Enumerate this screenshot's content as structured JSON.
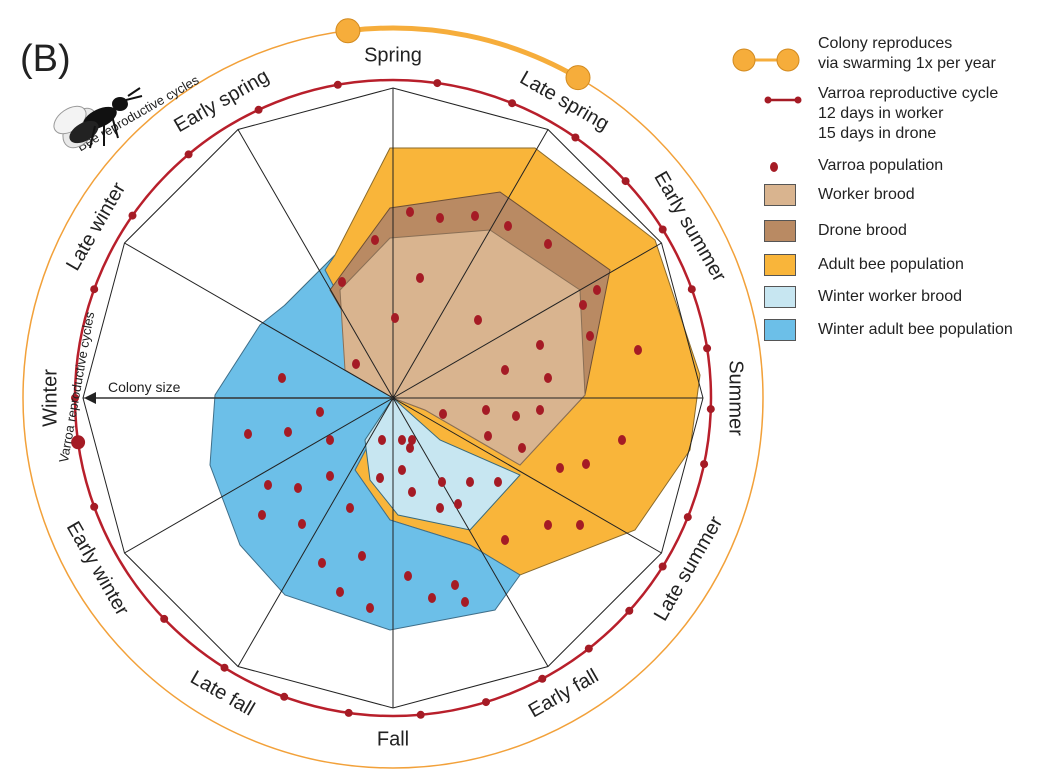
{
  "panel_label": "(B)",
  "seasons": [
    "Spring",
    "Late spring",
    "Early summer",
    "Summer",
    "Late summer",
    "Early fall",
    "Fall",
    "Late fall",
    "Early winter",
    "Winter",
    "Late winter",
    "Early spring"
  ],
  "arc_labels": {
    "bee_cycles": "Bee reproductive cycles",
    "varroa_cycles": "Varroa reproductive cycles"
  },
  "axis_label": "Colony size",
  "legend": {
    "swarming": "Colony reproduces\nvia swarming 1x per year",
    "varroa_cycle": "Varroa reproductive cycle\n12 days in worker\n15 days in drone",
    "varroa_population": "Varroa population",
    "worker_brood": "Worker brood",
    "drone_brood": "Drone brood",
    "adult_bee": "Adult bee population",
    "winter_worker_brood": "Winter worker brood",
    "winter_adult_bee": "Winter adult bee population"
  },
  "colors": {
    "adult_bee": "#f9b53a",
    "worker_brood": "#d9b48f",
    "drone_brood": "#b98a63",
    "winter_worker_brood": "#c7e6f1",
    "winter_adult_bee": "#6cbfe8",
    "varroa": "#a51b25",
    "swarm": "#f6ad3b"
  },
  "icons": [
    "bee-icon"
  ]
}
